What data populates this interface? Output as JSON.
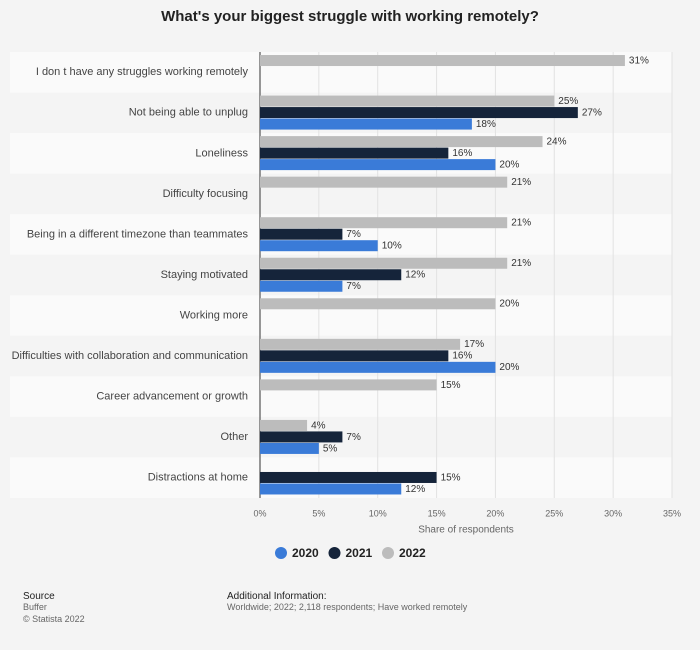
{
  "chart_data": {
    "type": "bar",
    "orientation": "horizontal",
    "title": "What's your biggest struggle with working remotely?",
    "x_label": "Share of respondents",
    "categories": [
      "I don t have any struggles working remotely",
      "Not being able to unplug",
      "Loneliness",
      "Difficulty focusing",
      "Being in a different timezone than teammates",
      "Staying motivated",
      "Working more",
      "Difficulties with collaboration and communication",
      "Career advancement or growth",
      "Other",
      "Distractions at home"
    ],
    "series": [
      {
        "name": "2020",
        "color": "#3a7bd8",
        "values": [
          null,
          18,
          20,
          null,
          10,
          7,
          null,
          20,
          null,
          5,
          12
        ],
        "value_labels": [
          null,
          "18%",
          "20%",
          null,
          "10%",
          "7%",
          null,
          "20%",
          null,
          "5%",
          "12%"
        ]
      },
      {
        "name": "2021",
        "color": "#15243a",
        "values": [
          null,
          27,
          16,
          null,
          7,
          12,
          null,
          16,
          null,
          7,
          15
        ],
        "value_labels": [
          null,
          "27%",
          "16%",
          null,
          "7%",
          "12%",
          null,
          "16%",
          null,
          "7%",
          "15%"
        ]
      },
      {
        "name": "2022",
        "color": "#bcbcbc",
        "values": [
          31,
          25,
          24,
          21,
          21,
          21,
          20,
          17,
          15,
          4,
          null
        ],
        "value_labels": [
          "31%",
          "25%",
          "24%",
          "21%",
          "21%",
          "21%",
          "20%",
          "17%",
          "15%",
          "4%",
          null
        ]
      }
    ],
    "xlim": [
      0,
      35
    ],
    "xticks": [
      {
        "value": 0,
        "label": "0%"
      },
      {
        "value": 5,
        "label": "5%"
      },
      {
        "value": 10,
        "label": "10%"
      },
      {
        "value": 15,
        "label": "15%"
      },
      {
        "value": 20,
        "label": "20%"
      },
      {
        "value": 25,
        "label": "25%"
      },
      {
        "value": 30,
        "label": "30%"
      },
      {
        "value": 35,
        "label": "35%"
      }
    ],
    "grid": true,
    "legend": "bottom"
  },
  "footer": {
    "source_title": "Source",
    "source": "Buffer",
    "copyright": "© Statista 2022",
    "info_title": "Additional Information:",
    "info": "Worldwide; 2022; 2,118 respondents; Have worked remotely"
  }
}
